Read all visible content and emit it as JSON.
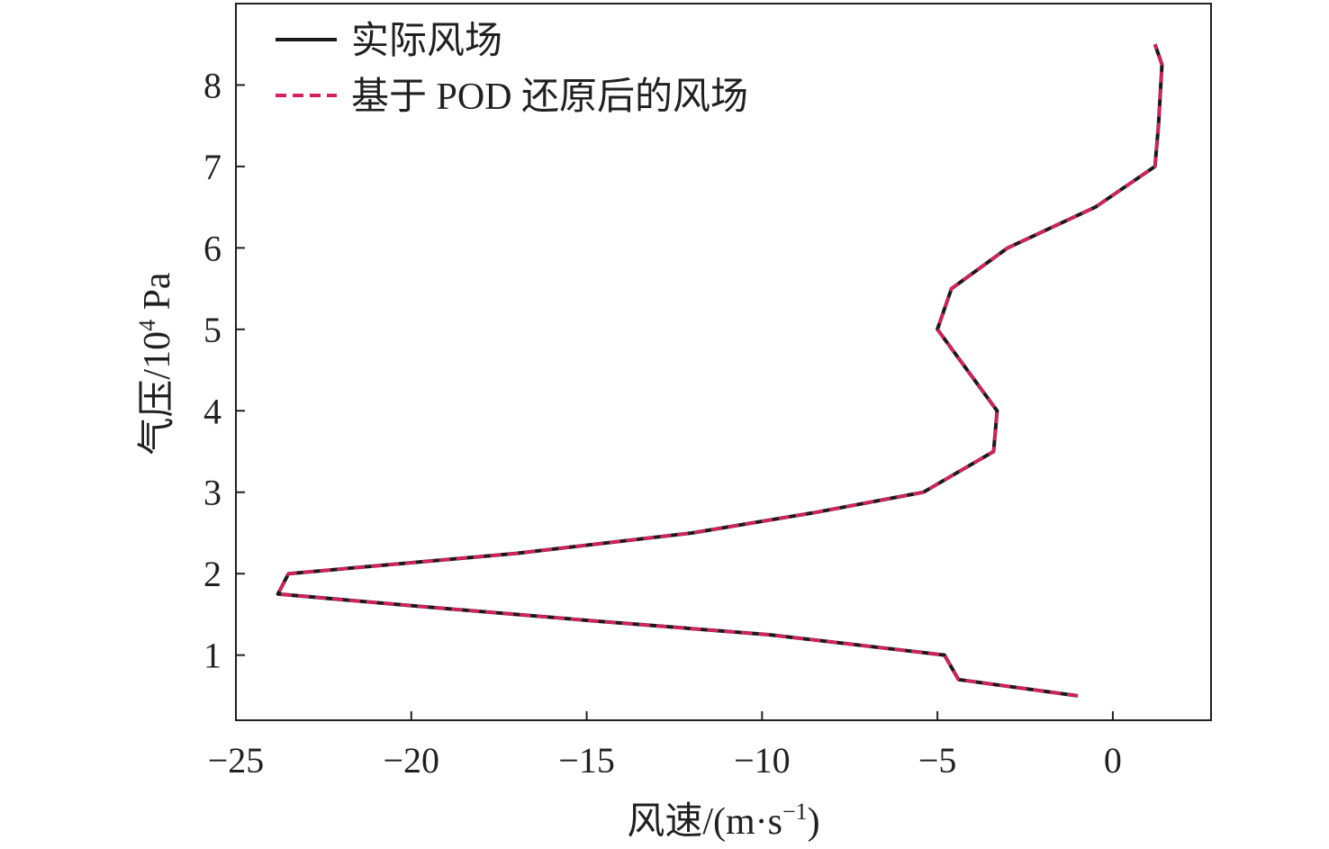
{
  "chart_data": {
    "type": "line",
    "xlabel": "风速/(m·s",
    "xlabel_sup": "−1",
    "xlabel_end": ")",
    "ylabel": "气压/10",
    "ylabel_sup": "4",
    "ylabel_end": " Pa",
    "xlim": [
      -25,
      2.8
    ],
    "ylim": [
      0.2,
      9.0
    ],
    "xticks": [
      -25,
      -20,
      -15,
      -10,
      -5,
      0
    ],
    "xtick_labels": [
      "−25",
      "−20",
      "−15",
      "−10",
      "−5",
      "0"
    ],
    "yticks": [
      1,
      2,
      3,
      4,
      5,
      6,
      7,
      8
    ],
    "ytick_labels": [
      "1",
      "2",
      "3",
      "4",
      "5",
      "6",
      "7",
      "8"
    ],
    "grid": false,
    "legend_position": "top-left",
    "series": [
      {
        "name": "实际风场",
        "color": "#1a1a1a",
        "style": "solid",
        "x": [
          -1.0,
          -4.4,
          -4.8,
          -9.8,
          -14.8,
          -19.8,
          -23.8,
          -23.5,
          -17.0,
          -12.0,
          -8.5,
          -5.4,
          -3.4,
          -3.3,
          -5.0,
          -4.6,
          -3.0,
          -0.5,
          1.2,
          1.3,
          1.4,
          1.2
        ],
        "y": [
          0.5,
          0.7,
          1.0,
          1.25,
          1.42,
          1.6,
          1.75,
          2.0,
          2.25,
          2.5,
          2.75,
          3.0,
          3.5,
          4.0,
          5.0,
          5.5,
          6.0,
          6.5,
          7.0,
          7.5,
          8.25,
          8.5
        ]
      },
      {
        "name": "基于 POD 还原后的风场",
        "color": "#d6215d",
        "style": "dashed",
        "x": [
          -1.0,
          -4.4,
          -4.8,
          -9.8,
          -14.8,
          -19.8,
          -23.8,
          -23.5,
          -17.0,
          -12.0,
          -8.5,
          -5.4,
          -3.4,
          -3.3,
          -5.0,
          -4.6,
          -3.0,
          -0.5,
          1.2,
          1.3,
          1.4,
          1.2
        ],
        "y": [
          0.5,
          0.7,
          1.0,
          1.25,
          1.42,
          1.6,
          1.75,
          2.0,
          2.25,
          2.5,
          2.75,
          3.0,
          3.5,
          4.0,
          5.0,
          5.5,
          6.0,
          6.5,
          7.0,
          7.5,
          8.25,
          8.5
        ]
      }
    ]
  }
}
